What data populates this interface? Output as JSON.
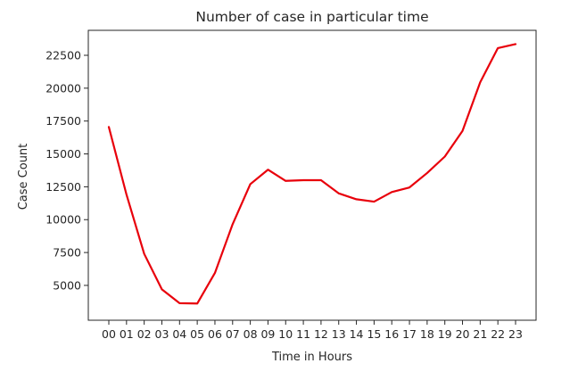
{
  "chart_data": {
    "type": "line",
    "title": "Number of case in particular time",
    "xlabel": "Time in Hours",
    "ylabel": "Case Count",
    "categories": [
      "00",
      "01",
      "02",
      "03",
      "04",
      "05",
      "06",
      "07",
      "08",
      "09",
      "10",
      "11",
      "12",
      "13",
      "14",
      "15",
      "16",
      "17",
      "18",
      "19",
      "20",
      "21",
      "22",
      "23"
    ],
    "series": [
      {
        "values": [
          17050,
          11900,
          7400,
          4700,
          3650,
          3620,
          5950,
          9650,
          12700,
          13800,
          12950,
          13000,
          13000,
          12000,
          11550,
          11370,
          12100,
          12450,
          13550,
          14800,
          16750,
          20450,
          23050,
          23350
        ]
      }
    ],
    "ylim": [
      2350,
      24400
    ],
    "yticks": [
      5000,
      7500,
      10000,
      12500,
      15000,
      17500,
      20000,
      22500
    ],
    "ytick_labels": [
      "5000",
      "7500",
      "10000",
      "12500",
      "15000",
      "17500",
      "20000",
      "22500"
    ],
    "grid": false,
    "legend": "none",
    "colors": {
      "series": "#e8000b",
      "axes": "#262626",
      "background": "#ffffff"
    }
  }
}
